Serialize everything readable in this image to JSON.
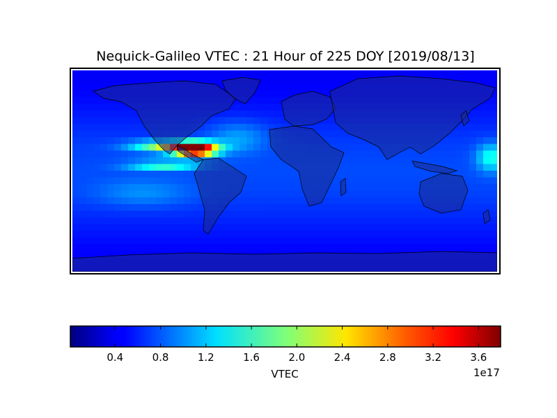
{
  "chart_data": {
    "type": "heatmap",
    "title": "Nequick-Galileo VTEC : 21 Hour of 225 DOY [2019/08/13]",
    "colormap": "jet",
    "background_color": "#0a3cff",
    "hotspots": [
      {
        "lon": -76,
        "lat": 19,
        "value": 3.8,
        "spread_lon": 17,
        "spread_lat": 6
      },
      {
        "lon": -95,
        "lat": 22,
        "value": 2.2,
        "spread_lon": 32,
        "spread_lat": 5
      },
      {
        "lon": -102,
        "lat": 5,
        "value": 1.6,
        "spread_lon": 30,
        "spread_lat": 4
      },
      {
        "lon": 175,
        "lat": 12,
        "value": 1.4,
        "spread_lon": 12,
        "spread_lat": 12
      },
      {
        "lon": -40,
        "lat": 30,
        "value": 1.0,
        "spread_lon": 25,
        "spread_lat": 14
      },
      {
        "lon": -120,
        "lat": -20,
        "value": 0.9,
        "spread_lon": 40,
        "spread_lat": 12
      }
    ],
    "colorbar": {
      "label": "VTEC",
      "min": 0,
      "max": 3.8,
      "ticks": [
        0.4,
        0.8,
        1.2,
        1.6,
        2.0,
        2.4,
        2.8,
        3.2,
        3.6
      ],
      "tick_labels": [
        "0.4",
        "0.8",
        "1.2",
        "1.6",
        "2.0",
        "2.4",
        "2.8",
        "3.2",
        "3.6"
      ],
      "offset_text": "1e17"
    }
  }
}
